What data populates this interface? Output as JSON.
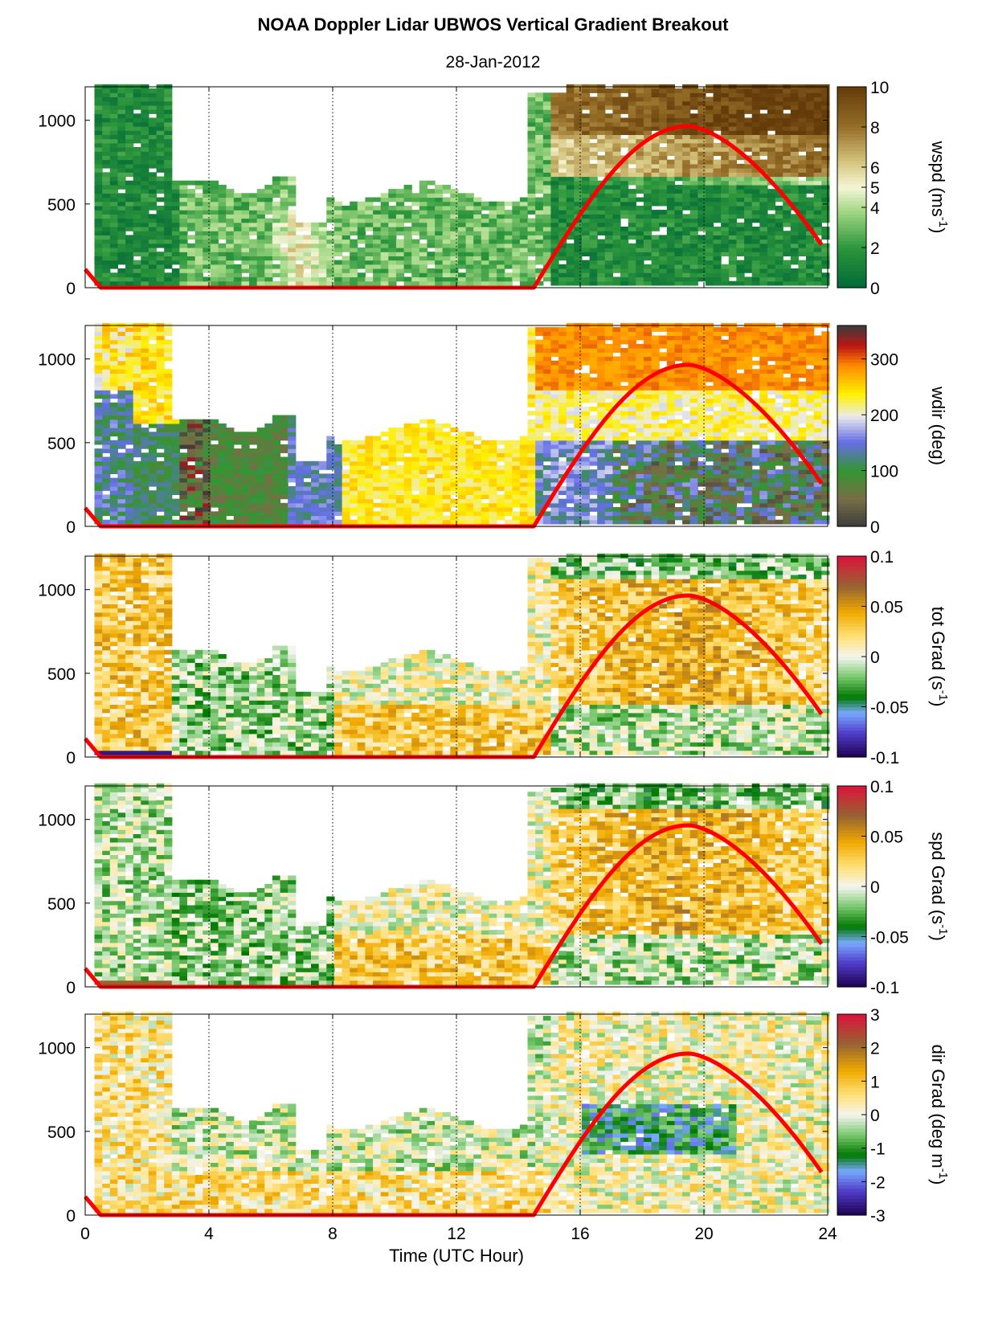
{
  "title": "NOAA Doppler Lidar  UBWOS  Vertical Gradient Breakout",
  "subtitle": "28-Jan-2012",
  "colors": {
    "sun_curve": "#ff0000",
    "grid": "#000000",
    "missing": "#ffffff"
  },
  "chart_data": [
    {
      "type": "heatmap",
      "name": "wspd",
      "ylabel": "wspd (ms",
      "ylabel_sup": "-1",
      "ylabel_end": ")",
      "xlim": [
        0,
        24
      ],
      "ylim": [
        0,
        1200
      ],
      "yticks": [
        0,
        500,
        1000
      ],
      "x_gridlines": [
        4,
        8,
        12,
        16,
        20
      ],
      "colorbar": {
        "range": [
          0,
          10
        ],
        "ticks": [
          0,
          2,
          4,
          5,
          6,
          8,
          10
        ],
        "tick_labels": [
          "0",
          "2",
          "4",
          "5",
          "6",
          "8",
          "10"
        ],
        "colormap": "green-white-brown"
      },
      "solar_curve": {
        "x": [
          0,
          0.5,
          14.5,
          15,
          16,
          17,
          18,
          19.5,
          21,
          22,
          23,
          23.9
        ],
        "y": [
          110,
          0,
          0,
          60,
          440,
          720,
          880,
          960,
          880,
          720,
          480,
          230
        ]
      }
    },
    {
      "type": "heatmap",
      "name": "wdir",
      "ylabel": "wdir (deg)",
      "ylabel_sup": "",
      "ylabel_end": "",
      "xlim": [
        0,
        24
      ],
      "ylim": [
        0,
        1200
      ],
      "yticks": [
        0,
        500,
        1000
      ],
      "x_gridlines": [
        4,
        8,
        12,
        16,
        20
      ],
      "colorbar": {
        "range": [
          0,
          360
        ],
        "ticks": [
          0,
          100,
          200,
          300
        ],
        "tick_labels": [
          "0",
          "100",
          "200",
          "300"
        ],
        "colormap": "direction"
      },
      "solar_curve": {
        "x": [
          0,
          0.5,
          14.5,
          15,
          16,
          17,
          18,
          19.5,
          21,
          22,
          23,
          23.9
        ],
        "y": [
          110,
          0,
          0,
          60,
          440,
          720,
          880,
          960,
          880,
          720,
          480,
          230
        ]
      }
    },
    {
      "type": "heatmap",
      "name": "tot Grad",
      "ylabel": "tot Grad (s",
      "ylabel_sup": "-1",
      "ylabel_end": ")",
      "xlim": [
        0,
        24
      ],
      "ylim": [
        0,
        1200
      ],
      "yticks": [
        0,
        500,
        1000
      ],
      "x_gridlines": [
        4,
        8,
        12,
        16,
        20
      ],
      "colorbar": {
        "range": [
          -0.1,
          0.1
        ],
        "ticks": [
          -0.1,
          -0.05,
          0,
          0.05,
          0.1
        ],
        "tick_labels": [
          "-0.1",
          "-0.05",
          "0",
          "0.05",
          "0.1"
        ],
        "colormap": "diverging"
      },
      "solar_curve": {
        "x": [
          0,
          0.5,
          14.5,
          15,
          16,
          17,
          18,
          19.5,
          21,
          22,
          23,
          23.9
        ],
        "y": [
          110,
          0,
          0,
          60,
          440,
          720,
          880,
          960,
          880,
          720,
          480,
          230
        ]
      }
    },
    {
      "type": "heatmap",
      "name": "spd Grad",
      "ylabel": "spd Grad (s",
      "ylabel_sup": "-1",
      "ylabel_end": ")",
      "xlim": [
        0,
        24
      ],
      "ylim": [
        0,
        1200
      ],
      "yticks": [
        0,
        500,
        1000
      ],
      "x_gridlines": [
        4,
        8,
        12,
        16,
        20
      ],
      "colorbar": {
        "range": [
          -0.1,
          0.1
        ],
        "ticks": [
          -0.1,
          -0.05,
          0,
          0.05,
          0.1
        ],
        "tick_labels": [
          "-0.1",
          "-0.05",
          "0",
          "0.05",
          "0.1"
        ],
        "colormap": "diverging"
      },
      "solar_curve": {
        "x": [
          0,
          0.5,
          14.5,
          15,
          16,
          17,
          18,
          19.5,
          21,
          22,
          23,
          23.9
        ],
        "y": [
          110,
          0,
          0,
          60,
          440,
          720,
          880,
          960,
          880,
          720,
          480,
          230
        ]
      }
    },
    {
      "type": "heatmap",
      "name": "dir Grad",
      "ylabel": "dir Grad (deg m",
      "ylabel_sup": "-1",
      "ylabel_end": ")",
      "xlim": [
        0,
        24
      ],
      "ylim": [
        0,
        1200
      ],
      "yticks": [
        0,
        500,
        1000
      ],
      "x_gridlines": [
        4,
        8,
        12,
        16,
        20
      ],
      "xticks": [
        0,
        4,
        8,
        12,
        16,
        20,
        24
      ],
      "xlabel": "Time (UTC Hour)",
      "colorbar": {
        "range": [
          -3,
          3
        ],
        "ticks": [
          -3,
          -2,
          -1,
          0,
          1,
          2,
          3
        ],
        "tick_labels": [
          "-3",
          "-2",
          "-1",
          "0",
          "1",
          "2",
          "3"
        ],
        "colormap": "diverging"
      },
      "solar_curve": {
        "x": [
          0,
          0.5,
          14.5,
          15,
          16,
          17,
          18,
          19.5,
          21,
          22,
          23,
          23.9
        ],
        "y": [
          110,
          0,
          0,
          60,
          440,
          720,
          880,
          960,
          880,
          720,
          480,
          230
        ]
      }
    }
  ]
}
